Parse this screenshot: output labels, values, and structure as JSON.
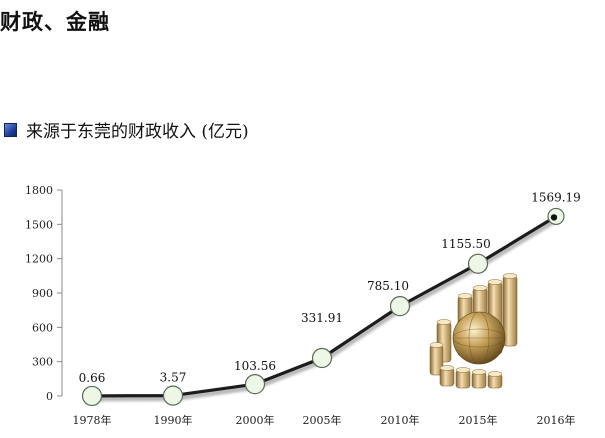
{
  "page": {
    "title": "财政、金融",
    "chart_heading": "来源于东莞的财政收入 (亿元)"
  },
  "colors": {
    "line": "#1c1c1c",
    "marker_fill": "#eef6e6",
    "marker_stroke": "#5a6a58",
    "last_marker_fill": "#111111",
    "axis": "#888888",
    "heading_icon": "#1f3f9a"
  },
  "icons": {
    "heading": "blue-square-bullet-icon",
    "decoration": "globe-coin-stacks-illustration"
  },
  "chart_data": {
    "type": "line",
    "title": "来源于东莞的财政收入 (亿元)",
    "xlabel": "",
    "ylabel": "",
    "categories": [
      "1978年",
      "1990年",
      "2000年",
      "2005年",
      "2010年",
      "2015年",
      "2016年"
    ],
    "series": [
      {
        "values": [
          0.66,
          3.57,
          103.56,
          331.91,
          785.1,
          1155.5,
          1569.19
        ],
        "labels": [
          "0.66",
          "3.57",
          "103.56",
          "331.91",
          "785.10",
          "1155.50",
          "1569.19"
        ]
      }
    ],
    "ylim": [
      0,
      1800
    ],
    "yticks": [
      0,
      300,
      600,
      900,
      1200,
      1500,
      1800
    ],
    "grid": false,
    "legend": "none"
  }
}
